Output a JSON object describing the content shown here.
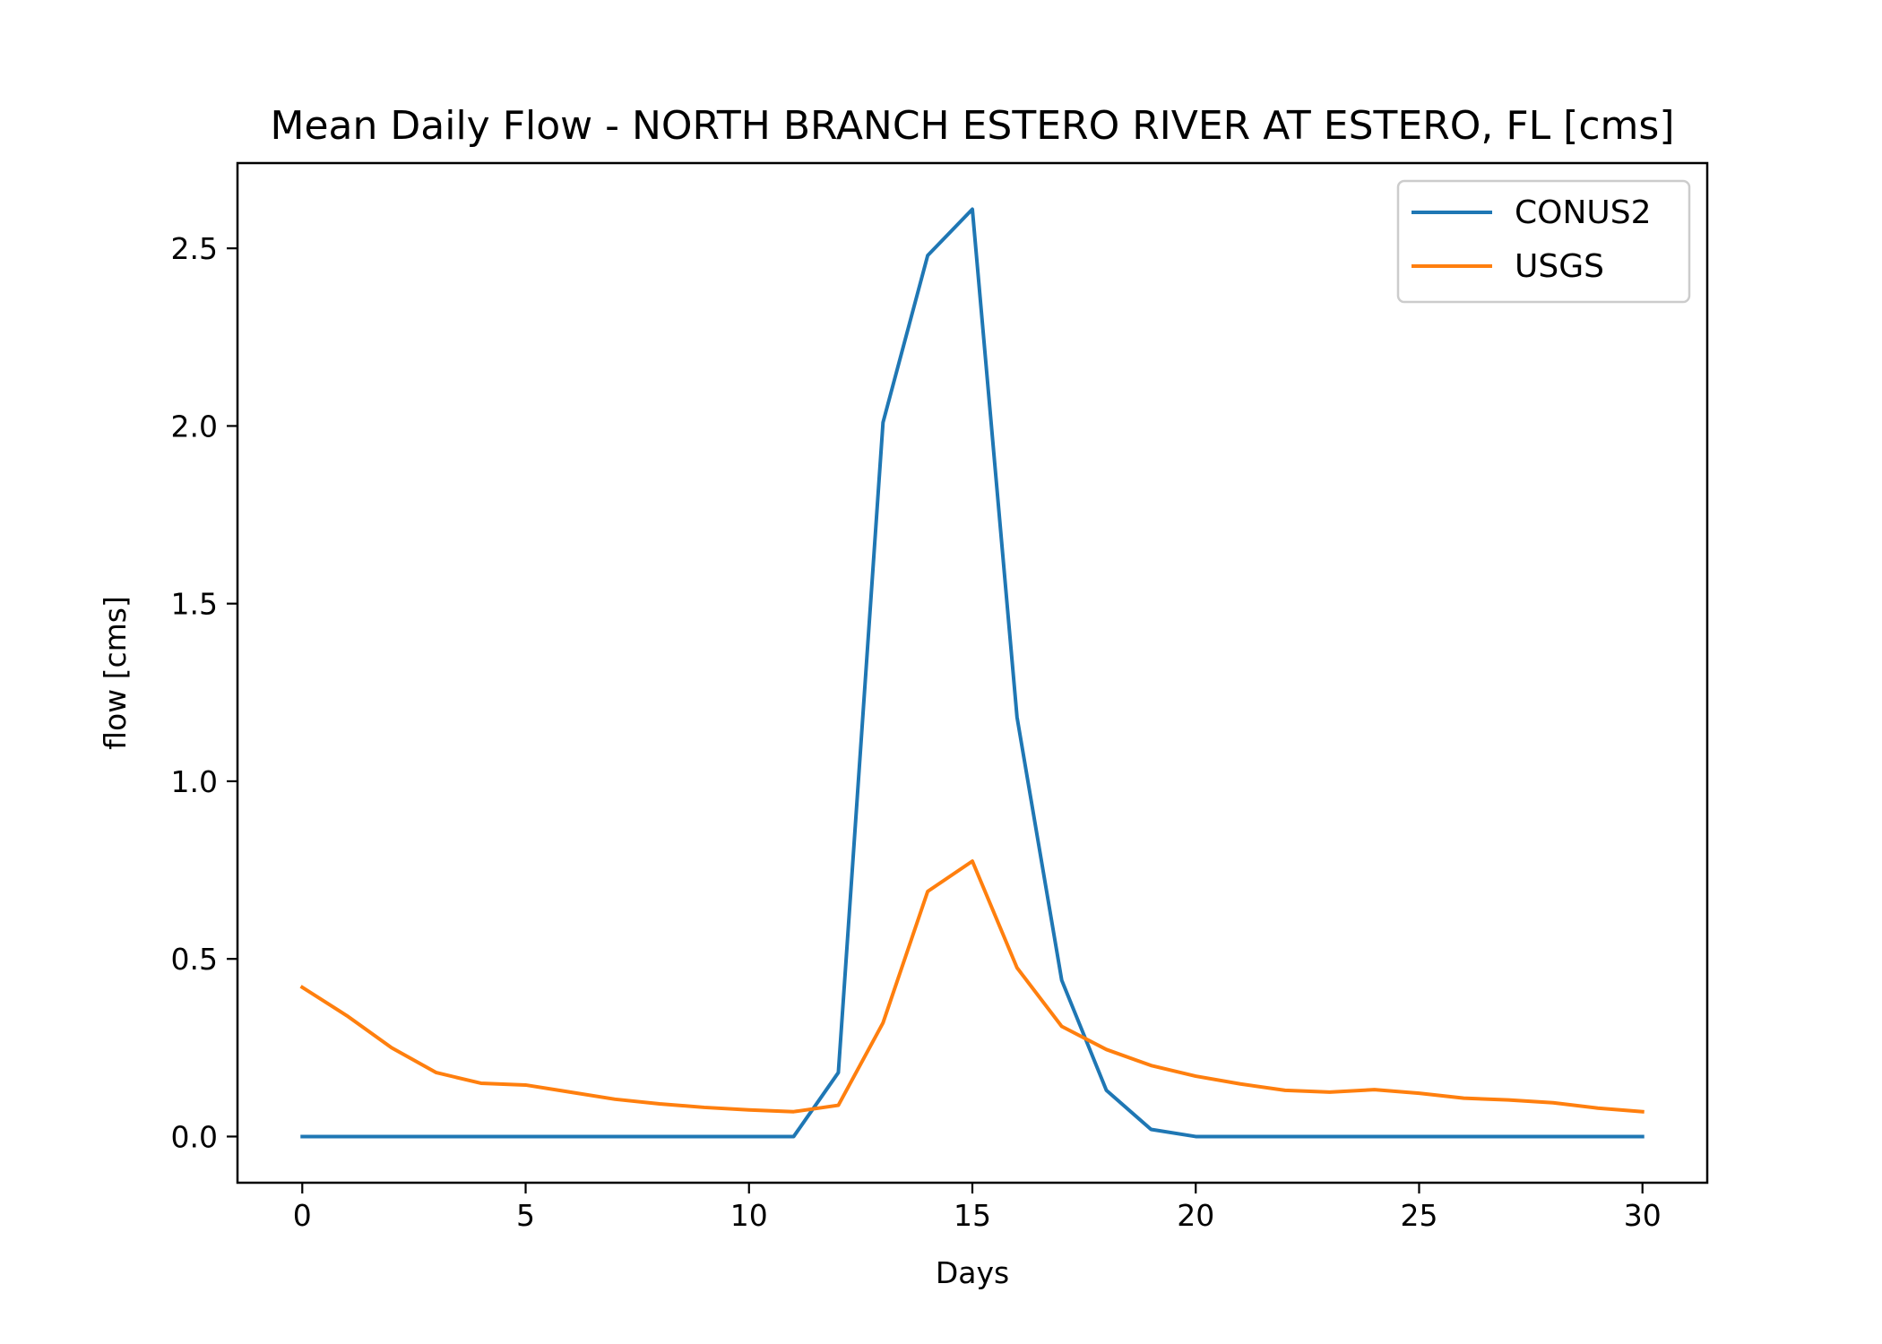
{
  "chart_data": {
    "type": "line",
    "title": "Mean Daily Flow - NORTH BRANCH ESTERO RIVER AT ESTERO, FL [cms]",
    "xlabel": "Days",
    "ylabel": "flow [cms]",
    "xlim": [
      -1.45,
      31.45
    ],
    "ylim": [
      -0.13,
      2.74
    ],
    "xticks": [
      0,
      5,
      10,
      15,
      20,
      25,
      30
    ],
    "xtick_labels": [
      "0",
      "5",
      "10",
      "15",
      "20",
      "25",
      "30"
    ],
    "yticks": [
      0.0,
      0.5,
      1.0,
      1.5,
      2.0,
      2.5
    ],
    "ytick_labels": [
      "0.0",
      "0.5",
      "1.0",
      "1.5",
      "2.0",
      "2.5"
    ],
    "grid": false,
    "legend_position": "top-right",
    "x": [
      0,
      1,
      2,
      3,
      4,
      5,
      6,
      7,
      8,
      9,
      10,
      11,
      12,
      13,
      14,
      15,
      16,
      17,
      18,
      19,
      20,
      21,
      22,
      23,
      24,
      25,
      26,
      27,
      28,
      29,
      30
    ],
    "series": [
      {
        "name": "CONUS2",
        "color": "#1f77b4",
        "values": [
          0,
          0,
          0,
          0,
          0,
          0,
          0,
          0,
          0,
          0,
          0,
          0,
          0.18,
          2.01,
          2.48,
          2.61,
          1.18,
          0.44,
          0.13,
          0.02,
          0,
          0,
          0,
          0,
          0,
          0,
          0,
          0,
          0,
          0,
          0
        ]
      },
      {
        "name": "USGS",
        "color": "#ff7f0e",
        "values": [
          0.42,
          0.34,
          0.25,
          0.18,
          0.15,
          0.145,
          0.125,
          0.105,
          0.092,
          0.082,
          0.075,
          0.07,
          0.088,
          0.32,
          0.69,
          0.775,
          0.475,
          0.31,
          0.245,
          0.2,
          0.17,
          0.148,
          0.13,
          0.125,
          0.132,
          0.122,
          0.108,
          0.103,
          0.095,
          0.08,
          0.07
        ]
      }
    ]
  }
}
